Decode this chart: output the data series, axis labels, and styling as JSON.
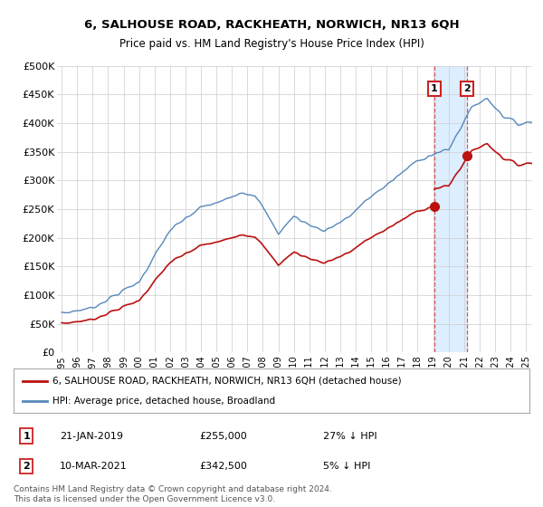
{
  "title_line1": "6, SALHOUSE ROAD, RACKHEATH, NORWICH, NR13 6QH",
  "title_line2": "Price paid vs. HM Land Registry's House Price Index (HPI)",
  "ylim": [
    0,
    500000
  ],
  "yticks": [
    0,
    50000,
    100000,
    150000,
    200000,
    250000,
    300000,
    350000,
    400000,
    450000,
    500000
  ],
  "ytick_labels": [
    "£0",
    "£50K",
    "£100K",
    "£150K",
    "£200K",
    "£250K",
    "£300K",
    "£350K",
    "£400K",
    "£450K",
    "£500K"
  ],
  "hpi_color": "#5588bb",
  "price_color": "#bb1111",
  "vline_color": "#dd3333",
  "shade_color": "#ddeeff",
  "annotation_box_color": "#cc2222",
  "background_color": "#ffffff",
  "grid_color": "#cccccc",
  "sale1_date": 2019.08,
  "sale1_price": 255000,
  "sale2_date": 2021.19,
  "sale2_price": 342500,
  "legend_line1": "6, SALHOUSE ROAD, RACKHEATH, NORWICH, NR13 6QH (detached house)",
  "legend_line2": "HPI: Average price, detached house, Broadland",
  "table_row1": [
    "1",
    "21-JAN-2019",
    "£255,000",
    "27% ↓ HPI"
  ],
  "table_row2": [
    "2",
    "10-MAR-2021",
    "£342,500",
    "5% ↓ HPI"
  ],
  "footnote": "Contains HM Land Registry data © Crown copyright and database right 2024.\nThis data is licensed under the Open Government Licence v3.0."
}
